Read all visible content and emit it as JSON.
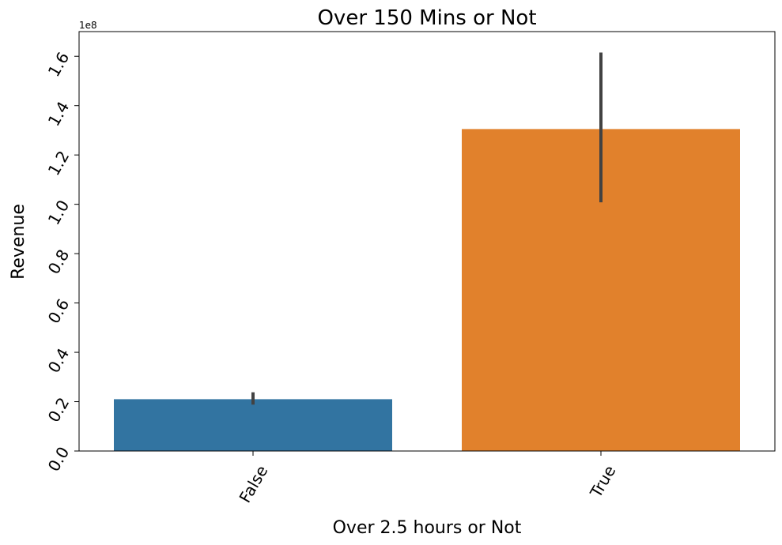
{
  "chart_data": {
    "type": "bar",
    "title": "Over 150 Mins or Not",
    "xlabel": "Over 2.5 hours or Not",
    "ylabel": "Revenue",
    "y_offset_label": "1e8",
    "y_multiplier": 100000000,
    "categories": [
      "False",
      "True"
    ],
    "values": [
      21000000,
      130500000
    ],
    "error_bars": [
      {
        "low": 18800000,
        "high": 23800000
      },
      {
        "low": 100800000,
        "high": 161500000
      }
    ],
    "ylim": [
      0,
      170000000
    ],
    "yticks": [
      0,
      20000000,
      40000000,
      60000000,
      80000000,
      100000000,
      120000000,
      140000000,
      160000000
    ],
    "ytick_labels": [
      "0.0",
      "0.2",
      "0.4",
      "0.6",
      "0.8",
      "1.0",
      "1.2",
      "1.4",
      "1.6"
    ],
    "colors": [
      "#3274a1",
      "#e1812c"
    ],
    "error_color": "#424242",
    "grid": false,
    "legend": "none"
  }
}
